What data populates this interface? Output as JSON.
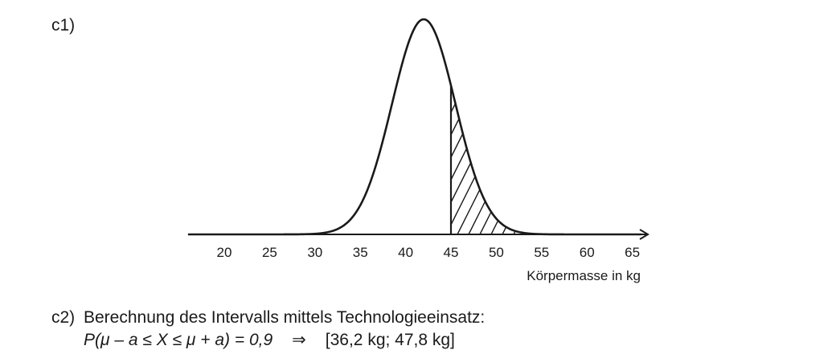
{
  "c1": {
    "label": "c1)"
  },
  "c2": {
    "label": "c2)",
    "text": "Berechnung des Intervalls mittels Technologieeinsatz:",
    "formula": "P(μ – a ≤ X ≤ μ + a) = 0,9",
    "arrow": "⇒",
    "result": "[36,2 kg; 47,8 kg]"
  },
  "chart_data": {
    "type": "area",
    "distribution": "normal",
    "mu": 42,
    "sigma": 3.5,
    "xlabel": "Körpermasse in kg",
    "ylabel": "",
    "xlim": [
      16,
      66
    ],
    "x_ticks": [
      20,
      25,
      30,
      35,
      40,
      45,
      50,
      55,
      60,
      65
    ],
    "tick_labels": [
      "20",
      "25",
      "30",
      "35",
      "40",
      "45",
      "50",
      "55",
      "60",
      "65"
    ],
    "shaded_region": {
      "from": 45,
      "to": 66,
      "pattern": "hatched"
    },
    "grid": false
  }
}
